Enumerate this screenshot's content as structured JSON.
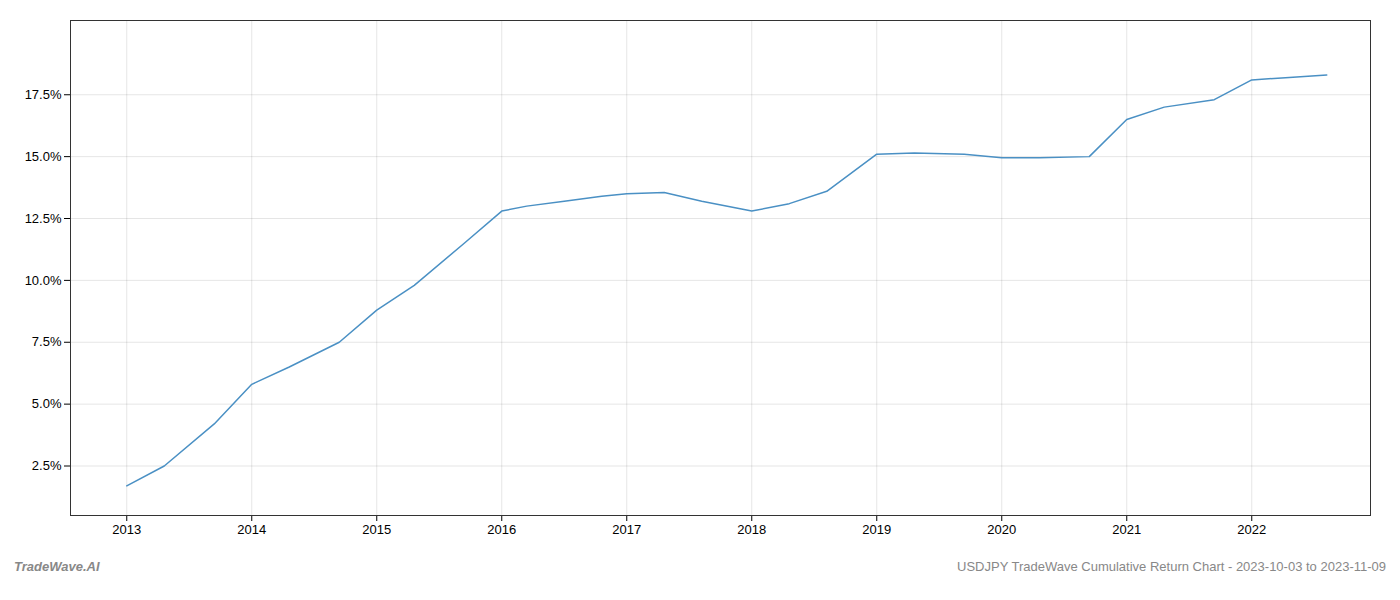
{
  "chart_data": {
    "type": "line",
    "annotations": [
      "TradeWave.AI",
      "USDJPY TradeWave Cumulative Return Chart - 2023-10-03 to 2023-11-09"
    ],
    "x": [
      2013.0,
      2013.3,
      2013.7,
      2014.0,
      2014.3,
      2014.7,
      2015.0,
      2015.3,
      2015.7,
      2016.0,
      2016.2,
      2016.5,
      2016.8,
      2017.0,
      2017.3,
      2017.6,
      2018.0,
      2018.3,
      2018.6,
      2019.0,
      2019.3,
      2019.7,
      2020.0,
      2020.3,
      2020.7,
      2021.0,
      2021.3,
      2021.7,
      2022.0,
      2022.3,
      2022.6
    ],
    "values": [
      1.7,
      2.5,
      4.2,
      5.8,
      6.5,
      7.5,
      8.8,
      9.8,
      11.5,
      12.8,
      13.0,
      13.2,
      13.4,
      13.5,
      13.55,
      13.2,
      12.8,
      13.1,
      13.6,
      15.1,
      15.15,
      15.1,
      14.95,
      14.95,
      15.0,
      16.5,
      17.0,
      17.3,
      18.1,
      18.2,
      18.3
    ],
    "color": "#4a90c4",
    "xlim": [
      2012.55,
      2022.95
    ],
    "ylim": [
      0.5,
      20.5
    ],
    "xticks": [
      2013,
      2014,
      2015,
      2016,
      2017,
      2018,
      2019,
      2020,
      2021,
      2022
    ],
    "yticks": [
      {
        "value": 2.5,
        "label": "2.5%"
      },
      {
        "value": 5.0,
        "label": "5.0%"
      },
      {
        "value": 7.5,
        "label": "7.5%"
      },
      {
        "value": 10.0,
        "label": "10.0%"
      },
      {
        "value": 12.5,
        "label": "12.5%"
      },
      {
        "value": 15.0,
        "label": "15.0%"
      },
      {
        "value": 17.5,
        "label": "17.5%"
      }
    ],
    "grid": true
  }
}
